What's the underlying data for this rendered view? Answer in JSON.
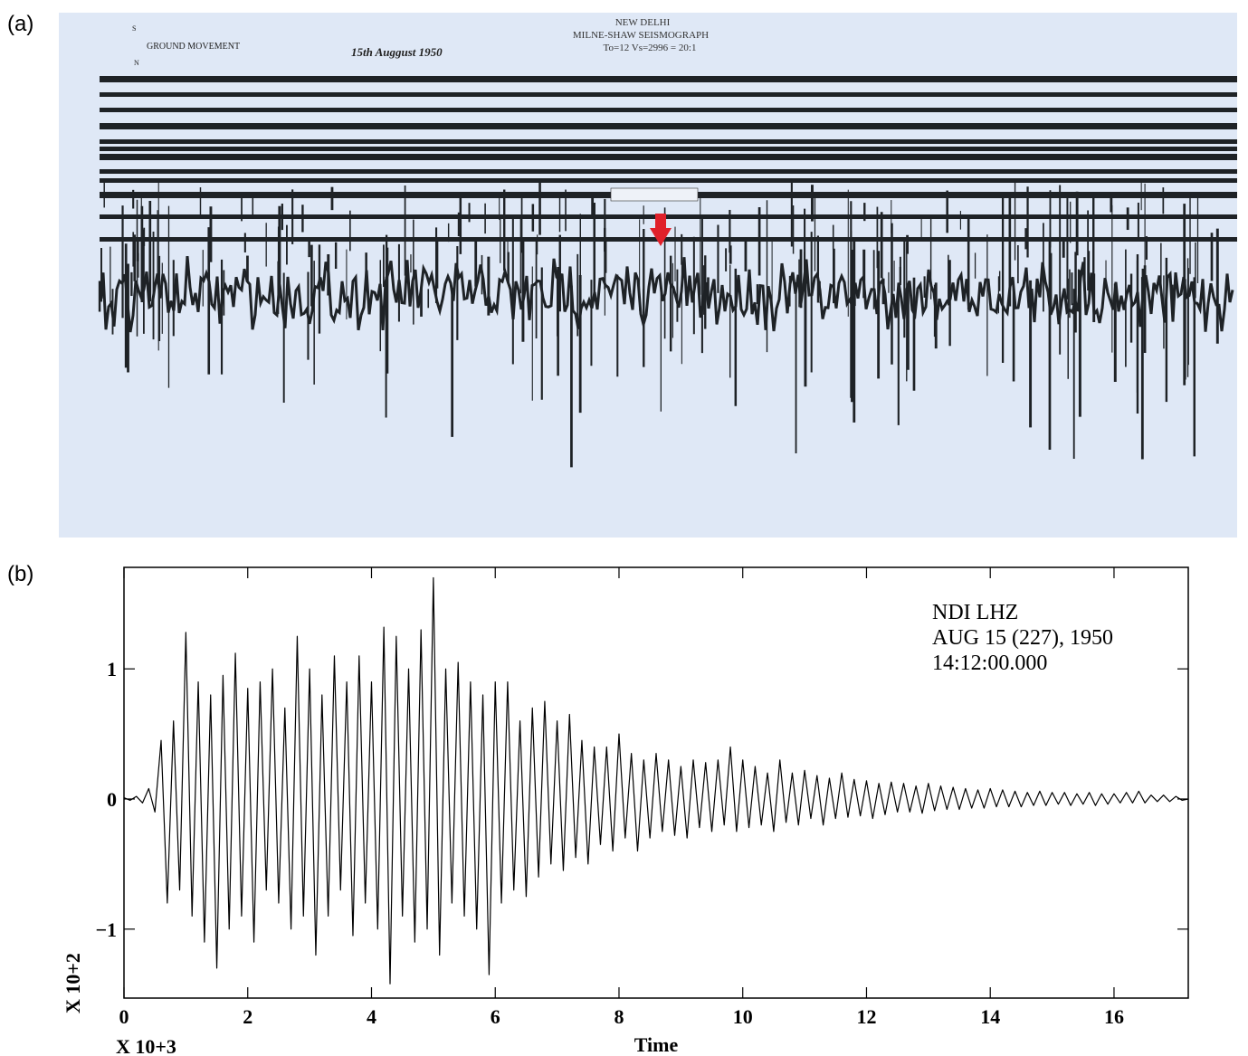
{
  "figure_labels": [
    "(a)",
    "(b)"
  ],
  "photo": {
    "station": "NEW DELHI",
    "instrument": "MILNE-SHAW SEISMOGRAPH",
    "constants": "To=12  Vs=2996 = 20:1",
    "date": "15th Auggust 1950",
    "component": "GROUND MOVEMENT",
    "compass": [
      "S",
      "N"
    ]
  },
  "chart_data": {
    "type": "line",
    "annotation": [
      "NDI LHZ",
      "AUG 15 (227), 1950",
      "14:12:00.000"
    ],
    "xlabel": "Time",
    "x_multiplier": "X 10+3",
    "y_multiplier": "X 10+2",
    "color": "#000000",
    "xlim": [
      0,
      17.2
    ],
    "ylim": [
      -1.53,
      1.78
    ],
    "xticks": [
      0,
      2,
      4,
      6,
      8,
      10,
      12,
      14,
      16
    ],
    "yticks": [
      {
        "value": -1,
        "label": "−1"
      },
      0,
      1
    ],
    "x": [
      0.0,
      0.1,
      0.2,
      0.3,
      0.4,
      0.5,
      0.6,
      0.7,
      0.8,
      0.9,
      1.0,
      1.1,
      1.2,
      1.3,
      1.4,
      1.5,
      1.6,
      1.7,
      1.8,
      1.9,
      2.0,
      2.1,
      2.2,
      2.3,
      2.4,
      2.5,
      2.6,
      2.7,
      2.8,
      2.9,
      3.0,
      3.1,
      3.2,
      3.3,
      3.4,
      3.5,
      3.6,
      3.7,
      3.8,
      3.9,
      4.0,
      4.1,
      4.2,
      4.3,
      4.4,
      4.5,
      4.6,
      4.7,
      4.8,
      4.9,
      5.0,
      5.1,
      5.2,
      5.3,
      5.4,
      5.5,
      5.6,
      5.7,
      5.8,
      5.9,
      6.0,
      6.1,
      6.2,
      6.3,
      6.4,
      6.5,
      6.6,
      6.7,
      6.8,
      6.9,
      7.0,
      7.1,
      7.2,
      7.3,
      7.4,
      7.5,
      7.6,
      7.7,
      7.8,
      7.9,
      8.0,
      8.1,
      8.2,
      8.3,
      8.4,
      8.5,
      8.6,
      8.7,
      8.8,
      8.9,
      9.0,
      9.1,
      9.2,
      9.3,
      9.4,
      9.5,
      9.6,
      9.7,
      9.8,
      9.9,
      10.0,
      10.1,
      10.2,
      10.3,
      10.4,
      10.5,
      10.6,
      10.7,
      10.8,
      10.9,
      11.0,
      11.1,
      11.2,
      11.3,
      11.4,
      11.5,
      11.6,
      11.7,
      11.8,
      11.9,
      12.0,
      12.1,
      12.2,
      12.3,
      12.4,
      12.5,
      12.6,
      12.7,
      12.8,
      12.9,
      13.0,
      13.1,
      13.2,
      13.3,
      13.4,
      13.5,
      13.6,
      13.7,
      13.8,
      13.9,
      14.0,
      14.1,
      14.2,
      14.3,
      14.4,
      14.5,
      14.6,
      14.7,
      14.8,
      14.9,
      15.0,
      15.1,
      15.2,
      15.3,
      15.4,
      15.5,
      15.6,
      15.7,
      15.8,
      15.9,
      16.0,
      16.1,
      16.2,
      16.3,
      16.4,
      16.5,
      16.6,
      16.7,
      16.8,
      16.9,
      17.0,
      17.1,
      17.2
    ],
    "values": [
      0.01,
      -0.01,
      0.02,
      -0.03,
      0.08,
      -0.1,
      0.45,
      -0.8,
      0.6,
      -0.7,
      1.28,
      -0.9,
      0.9,
      -1.1,
      0.8,
      -1.3,
      0.95,
      -1.0,
      1.12,
      -0.9,
      0.85,
      -1.1,
      0.9,
      -0.7,
      1.0,
      -0.8,
      0.7,
      -1.0,
      1.25,
      -0.9,
      1.0,
      -1.2,
      0.8,
      -0.9,
      1.1,
      -0.7,
      0.9,
      -1.05,
      1.1,
      -0.8,
      0.9,
      -1.0,
      1.32,
      -1.42,
      1.25,
      -0.9,
      1.0,
      -1.1,
      1.3,
      -1.0,
      1.7,
      -1.2,
      1.0,
      -0.8,
      1.05,
      -0.9,
      0.9,
      -1.0,
      0.8,
      -1.35,
      0.9,
      -0.8,
      0.9,
      -0.7,
      0.6,
      -0.75,
      0.7,
      -0.6,
      0.75,
      -0.5,
      0.6,
      -0.55,
      0.65,
      -0.45,
      0.45,
      -0.5,
      0.4,
      -0.35,
      0.4,
      -0.4,
      0.5,
      -0.3,
      0.35,
      -0.4,
      0.3,
      -0.3,
      0.35,
      -0.25,
      0.3,
      -0.28,
      0.25,
      -0.3,
      0.3,
      -0.22,
      0.28,
      -0.25,
      0.3,
      -0.2,
      0.4,
      -0.25,
      0.3,
      -0.22,
      0.25,
      -0.2,
      0.2,
      -0.25,
      0.3,
      -0.18,
      0.2,
      -0.2,
      0.22,
      -0.15,
      0.18,
      -0.2,
      0.16,
      -0.15,
      0.2,
      -0.14,
      0.15,
      -0.13,
      0.14,
      -0.15,
      0.12,
      -0.12,
      0.13,
      -0.1,
      0.12,
      -0.1,
      0.1,
      -0.11,
      0.12,
      -0.09,
      0.1,
      -0.08,
      0.09,
      -0.08,
      0.08,
      -0.07,
      0.07,
      -0.07,
      0.08,
      -0.06,
      0.07,
      -0.06,
      0.06,
      -0.06,
      0.05,
      -0.05,
      0.06,
      -0.05,
      0.05,
      -0.04,
      0.05,
      -0.05,
      0.04,
      -0.04,
      0.05,
      -0.05,
      0.04,
      -0.04,
      0.04,
      -0.03,
      0.05,
      -0.03,
      0.06,
      -0.03,
      0.03,
      -0.02,
      0.03,
      -0.02,
      0.02,
      -0.01,
      0.0
    ]
  }
}
